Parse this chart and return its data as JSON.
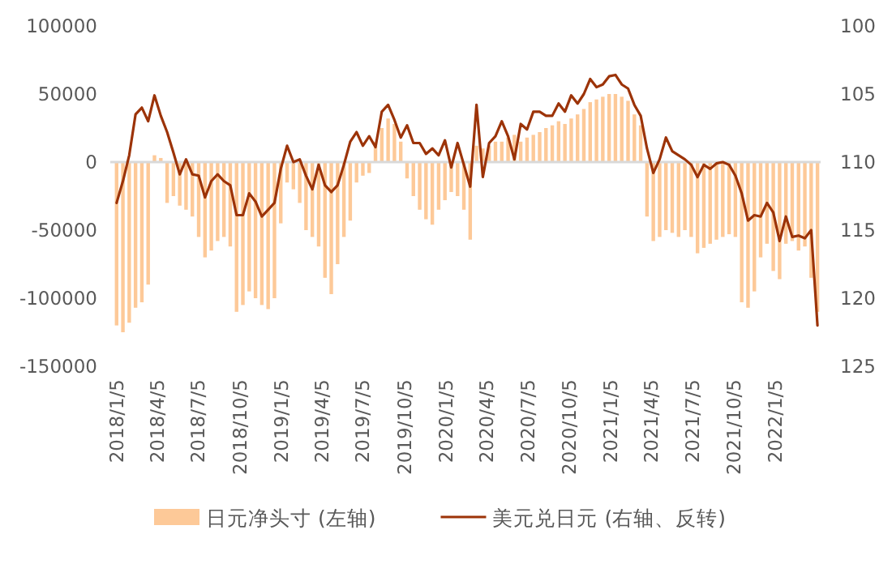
{
  "chart_data": {
    "type": "bar",
    "x": [
      "2018-01-05",
      "2018-01-19",
      "2018-02-02",
      "2018-02-16",
      "2018-03-02",
      "2018-03-16",
      "2018-03-30",
      "2018-04-13",
      "2018-04-27",
      "2018-05-11",
      "2018-05-25",
      "2018-06-08",
      "2018-06-22",
      "2018-07-06",
      "2018-07-20",
      "2018-08-03",
      "2018-08-17",
      "2018-08-31",
      "2018-09-14",
      "2018-09-28",
      "2018-10-12",
      "2018-10-26",
      "2018-11-09",
      "2018-11-23",
      "2018-12-07",
      "2018-12-21",
      "2019-01-04",
      "2019-01-18",
      "2019-02-01",
      "2019-02-15",
      "2019-03-01",
      "2019-03-15",
      "2019-03-29",
      "2019-04-12",
      "2019-04-26",
      "2019-05-10",
      "2019-05-24",
      "2019-06-07",
      "2019-06-21",
      "2019-07-05",
      "2019-07-19",
      "2019-08-02",
      "2019-08-16",
      "2019-08-30",
      "2019-09-13",
      "2019-09-27",
      "2019-10-11",
      "2019-10-25",
      "2019-11-08",
      "2019-11-22",
      "2019-12-06",
      "2019-12-20",
      "2020-01-03",
      "2020-01-17",
      "2020-01-31",
      "2020-02-14",
      "2020-02-28",
      "2020-03-13",
      "2020-03-27",
      "2020-04-10",
      "2020-04-24",
      "2020-05-08",
      "2020-05-22",
      "2020-06-05",
      "2020-06-19",
      "2020-07-03",
      "2020-07-17",
      "2020-07-31",
      "2020-08-14",
      "2020-08-28",
      "2020-09-11",
      "2020-09-25",
      "2020-10-09",
      "2020-10-23",
      "2020-11-06",
      "2020-11-20",
      "2020-12-04",
      "2020-12-18",
      "2021-01-01",
      "2021-01-15",
      "2021-01-29",
      "2021-02-12",
      "2021-02-26",
      "2021-03-12",
      "2021-03-26",
      "2021-04-09",
      "2021-04-23",
      "2021-05-07",
      "2021-05-21",
      "2021-06-04",
      "2021-06-18",
      "2021-07-02",
      "2021-07-16",
      "2021-07-30",
      "2021-08-13",
      "2021-08-27",
      "2021-09-10",
      "2021-09-24",
      "2021-10-08",
      "2021-10-22",
      "2021-11-05",
      "2021-11-19",
      "2021-12-03",
      "2021-12-17",
      "2021-12-31",
      "2022-01-14",
      "2022-01-28",
      "2022-02-11",
      "2022-02-25",
      "2022-03-11",
      "2022-03-25",
      "2022-04-08"
    ],
    "series": [
      {
        "name": "日元净头寸 (左轴)",
        "color": "#fdc998",
        "values": [
          -120000,
          -125000,
          -118000,
          -107000,
          -103000,
          -90000,
          5000,
          3000,
          -30000,
          -25000,
          -32000,
          -35000,
          -40000,
          -55000,
          -70000,
          -65000,
          -58000,
          -55000,
          -62000,
          -110000,
          -105000,
          -95000,
          -100000,
          -105000,
          -108000,
          -100000,
          -45000,
          -15000,
          -20000,
          -30000,
          -50000,
          -55000,
          -62000,
          -85000,
          -97000,
          -75000,
          -55000,
          -43000,
          -15000,
          -10000,
          -8000,
          15000,
          25000,
          32000,
          28000,
          15000,
          -12000,
          -25000,
          -35000,
          -42000,
          -46000,
          -35000,
          -28000,
          -22000,
          -25000,
          -35000,
          -57000,
          12000,
          10000,
          12000,
          15000,
          15000,
          18000,
          20000,
          15000,
          18000,
          20000,
          22000,
          25000,
          27000,
          30000,
          28000,
          32000,
          35000,
          39000,
          44000,
          46000,
          48000,
          50000,
          50000,
          48000,
          45000,
          35000,
          27000,
          -40000,
          -58000,
          -55000,
          -50000,
          -52000,
          -55000,
          -50000,
          -55000,
          -67000,
          -63000,
          -60000,
          -57000,
          -55000,
          -53000,
          -55000,
          -103000,
          -107000,
          -95000,
          -70000,
          -60000,
          -80000,
          -86000,
          -60000,
          -58000,
          -65000,
          -62000,
          -85000,
          -110000
        ]
      },
      {
        "name": "美元兑日元 (右轴、反转)",
        "type": "line",
        "axis": "y2",
        "color": "#9c3308",
        "values": [
          113.0,
          111.4,
          109.5,
          106.5,
          106.0,
          107.0,
          105.1,
          106.6,
          107.8,
          109.3,
          110.9,
          109.8,
          110.9,
          111.0,
          112.6,
          111.4,
          110.9,
          111.4,
          111.7,
          113.9,
          113.9,
          112.3,
          112.9,
          114.0,
          113.5,
          113.0,
          110.5,
          108.8,
          110.0,
          109.8,
          111.0,
          112.0,
          110.2,
          111.7,
          112.2,
          111.7,
          110.2,
          108.5,
          107.8,
          108.8,
          108.1,
          108.9,
          106.3,
          105.8,
          106.9,
          108.2,
          107.3,
          108.6,
          108.6,
          109.4,
          109.0,
          109.5,
          108.4,
          110.4,
          108.6,
          110.2,
          111.8,
          105.8,
          111.1,
          108.6,
          108.1,
          107.0,
          108.1,
          109.8,
          107.2,
          107.6,
          106.3,
          106.3,
          106.6,
          106.6,
          105.7,
          106.3,
          105.1,
          105.7,
          105.0,
          103.9,
          104.5,
          104.3,
          103.7,
          103.6,
          104.3,
          104.6,
          105.8,
          106.6,
          109.0,
          110.8,
          109.8,
          108.2,
          109.2,
          109.5,
          109.8,
          110.2,
          111.1,
          110.2,
          110.5,
          110.1,
          110.0,
          110.2,
          111.0,
          112.3,
          114.3,
          113.9,
          114.0,
          113.0,
          113.7,
          115.8,
          114.0,
          115.5,
          115.4,
          115.6,
          115.0,
          122.0
        ]
      }
    ],
    "xlim": [
      "2017-12-22",
      "2022-04-15"
    ],
    "xticks": [
      {
        "value": "2018-01-05",
        "label": "2018/1/5"
      },
      {
        "value": "2018-04-05",
        "label": "2018/4/5"
      },
      {
        "value": "2018-07-05",
        "label": "2018/7/5"
      },
      {
        "value": "2018-10-05",
        "label": "2018/10/5"
      },
      {
        "value": "2019-01-05",
        "label": "2019/1/5"
      },
      {
        "value": "2019-04-05",
        "label": "2019/4/5"
      },
      {
        "value": "2019-07-05",
        "label": "2019/7/5"
      },
      {
        "value": "2019-10-05",
        "label": "2019/10/5"
      },
      {
        "value": "2020-01-05",
        "label": "2020/1/5"
      },
      {
        "value": "2020-04-05",
        "label": "2020/4/5"
      },
      {
        "value": "2020-07-05",
        "label": "2020/7/5"
      },
      {
        "value": "2020-10-05",
        "label": "2020/10/5"
      },
      {
        "value": "2021-01-05",
        "label": "2021/1/5"
      },
      {
        "value": "2021-04-05",
        "label": "2021/4/5"
      },
      {
        "value": "2021-07-05",
        "label": "2021/7/5"
      },
      {
        "value": "2021-10-05",
        "label": "2021/10/5"
      },
      {
        "value": "2022-01-05",
        "label": "2022/1/5"
      }
    ],
    "ylim": [
      -150000,
      100000
    ],
    "yticks": [
      -150000,
      -100000,
      -50000,
      0,
      50000,
      100000
    ],
    "y2lim": [
      125,
      100
    ],
    "y2ticks": [
      100,
      105,
      110,
      115,
      120,
      125
    ],
    "legend": "bottom"
  }
}
